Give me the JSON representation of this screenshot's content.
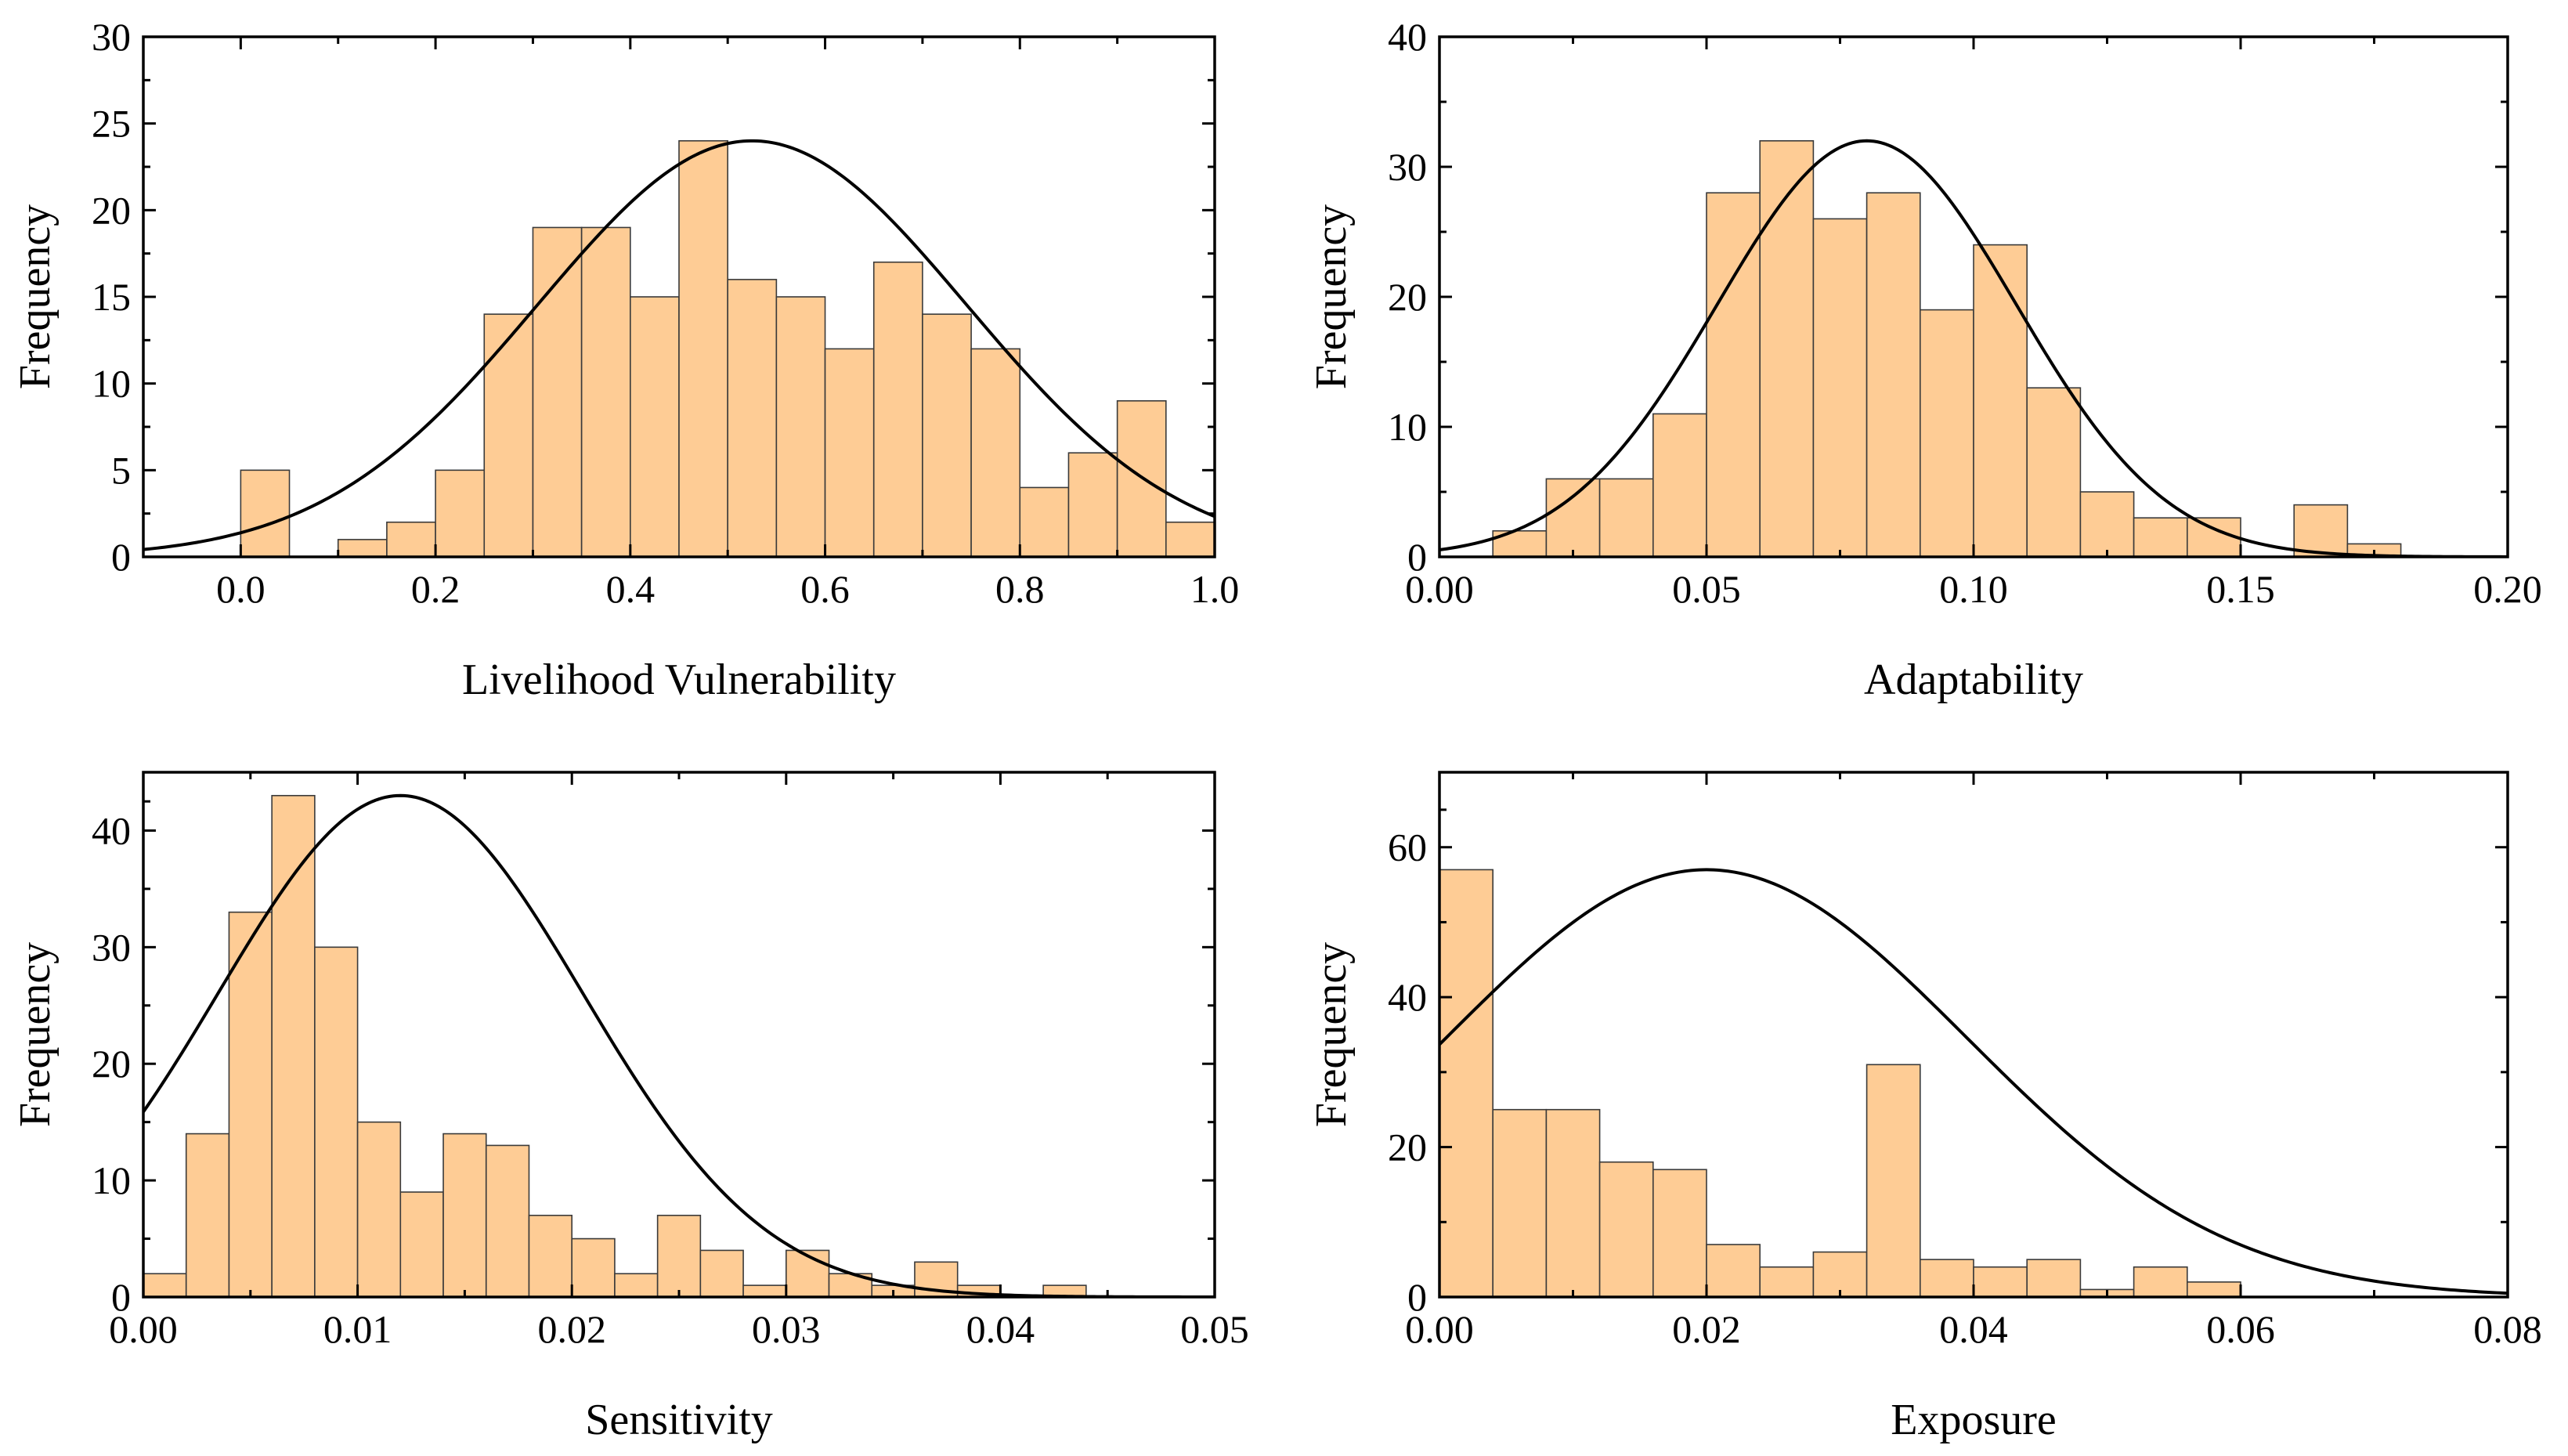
{
  "colors": {
    "bar_fill": "#FECC95",
    "bar_edge": "#3a3a3a",
    "curve": "#000000",
    "axes": "#000000"
  },
  "chart_data": [
    {
      "id": "livelihood",
      "type": "bar",
      "xlabel": "Livelihood Vulnerability",
      "ylabel": "Frequency",
      "xlim": [
        -0.1,
        1.0
      ],
      "ylim": [
        0,
        30
      ],
      "xticks": [
        0.0,
        0.2,
        0.4,
        0.6,
        0.8,
        1.0
      ],
      "xtick_labels": [
        "0.0",
        "0.2",
        "0.4",
        "0.6",
        "0.8",
        "1.0"
      ],
      "yticks": [
        0,
        5,
        10,
        15,
        20,
        25,
        30
      ],
      "ytick_labels": [
        "0",
        "5",
        "10",
        "15",
        "20",
        "25",
        "30"
      ],
      "bin_width": 0.05,
      "bin_starts": [
        0.0,
        0.1,
        0.15,
        0.2,
        0.25,
        0.3,
        0.35,
        0.4,
        0.45,
        0.5,
        0.55,
        0.6,
        0.65,
        0.7,
        0.75,
        0.8,
        0.85,
        0.9,
        0.95
      ],
      "values": [
        5,
        1,
        2,
        5,
        14,
        19,
        19,
        15,
        24,
        16,
        15,
        12,
        17,
        14,
        12,
        4,
        6,
        9,
        2
      ],
      "normal_curve": {
        "mean": 0.525,
        "sd": 0.22,
        "peak": 24
      }
    },
    {
      "id": "adaptability",
      "type": "bar",
      "xlabel": "Adaptability",
      "ylabel": "Frequency",
      "xlim": [
        0.0,
        0.2
      ],
      "ylim": [
        0,
        40
      ],
      "xticks": [
        0.0,
        0.05,
        0.1,
        0.15,
        0.2
      ],
      "xtick_labels": [
        "0.00",
        "0.05",
        "0.10",
        "0.15",
        "0.20"
      ],
      "yticks": [
        0,
        10,
        20,
        30,
        40
      ],
      "ytick_labels": [
        "0",
        "10",
        "20",
        "30",
        "40"
      ],
      "bin_width": 0.01,
      "bin_starts": [
        0.01,
        0.02,
        0.03,
        0.04,
        0.05,
        0.06,
        0.07,
        0.08,
        0.09,
        0.1,
        0.11,
        0.12,
        0.13,
        0.14,
        0.16,
        0.17
      ],
      "values": [
        2,
        6,
        6,
        11,
        28,
        32,
        26,
        28,
        19,
        24,
        13,
        5,
        3,
        3,
        4,
        1
      ],
      "normal_curve": {
        "mean": 0.08,
        "sd": 0.028,
        "peak": 32
      }
    },
    {
      "id": "sensitivity",
      "type": "bar",
      "xlabel": "Sensitivity",
      "ylabel": "Frequency",
      "xlim": [
        0.0,
        0.05
      ],
      "ylim": [
        0,
        45
      ],
      "xticks": [
        0.0,
        0.01,
        0.02,
        0.03,
        0.04,
        0.05
      ],
      "xtick_labels": [
        "0.00",
        "0.01",
        "0.02",
        "0.03",
        "0.04",
        "0.05"
      ],
      "yticks": [
        0,
        10,
        20,
        30,
        40
      ],
      "ytick_labels": [
        "0",
        "10",
        "20",
        "30",
        "40"
      ],
      "bin_width": 0.002,
      "bin_starts": [
        0.0,
        0.002,
        0.004,
        0.006,
        0.008,
        0.01,
        0.012,
        0.014,
        0.016,
        0.018,
        0.02,
        0.022,
        0.024,
        0.026,
        0.028,
        0.03,
        0.032,
        0.034,
        0.036,
        0.038,
        0.042
      ],
      "values": [
        2,
        14,
        33,
        43,
        30,
        15,
        9,
        14,
        13,
        7,
        5,
        2,
        7,
        4,
        1,
        4,
        2,
        1,
        3,
        1,
        1
      ],
      "normal_curve": {
        "mean": 0.012,
        "sd": 0.0085,
        "peak": 43
      }
    },
    {
      "id": "exposure",
      "type": "bar",
      "xlabel": "Exposure",
      "ylabel": "Frequency",
      "xlim": [
        0.0,
        0.08
      ],
      "ylim": [
        0,
        70
      ],
      "xticks": [
        0.0,
        0.02,
        0.04,
        0.06,
        0.08
      ],
      "xtick_labels": [
        "0.00",
        "0.02",
        "0.04",
        "0.06",
        "0.08"
      ],
      "yticks": [
        0,
        20,
        40,
        60
      ],
      "ytick_labels": [
        "0",
        "20",
        "40",
        "60"
      ],
      "bin_width": 0.004,
      "bin_starts": [
        0.0,
        0.004,
        0.008,
        0.012,
        0.016,
        0.02,
        0.024,
        0.028,
        0.032,
        0.036,
        0.04,
        0.044,
        0.048,
        0.052,
        0.056,
        0.06,
        0.064,
        0.068,
        0.072
      ],
      "values": [
        57,
        25,
        25,
        18,
        17,
        7,
        4,
        6,
        31,
        5,
        4,
        5,
        1,
        4,
        2,
        0,
        0,
        0,
        0
      ],
      "normal_curve": {
        "mean": 0.02,
        "sd": 0.0195,
        "peak": 57
      }
    }
  ]
}
